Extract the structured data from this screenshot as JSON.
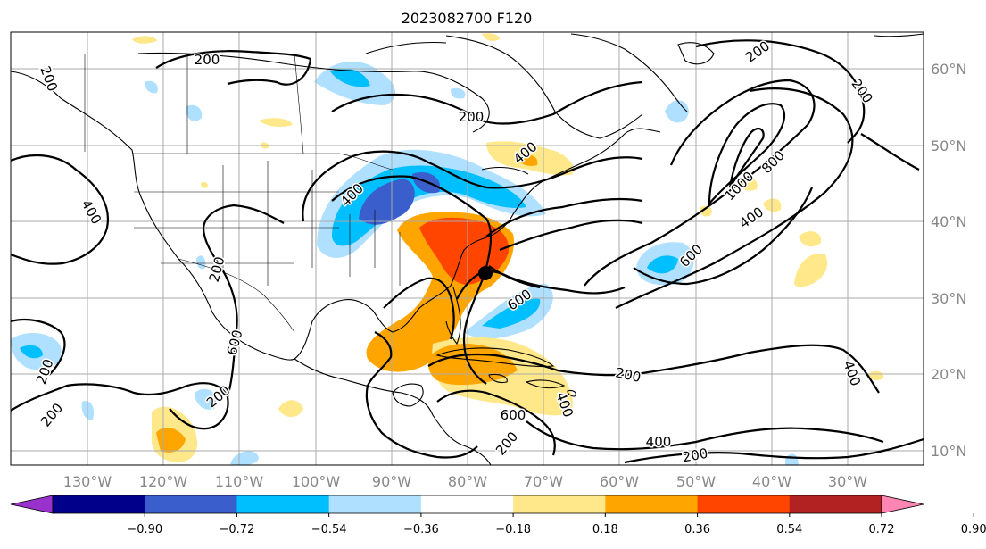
{
  "title": "2023082700 F120",
  "map": {
    "lat_labels": [
      "60°N",
      "50°N",
      "40°N",
      "30°N",
      "20°N",
      "10°N"
    ],
    "lon_labels": [
      "130°W",
      "120°W",
      "110°W",
      "100°W",
      "90°W",
      "80°W",
      "70°W",
      "60°W",
      "50°W",
      "40°W",
      "30°W"
    ],
    "contour_labels": [
      "200",
      "200",
      "200",
      "400",
      "400",
      "400",
      "400",
      "400",
      "400",
      "600",
      "600",
      "600",
      "800",
      "1000",
      "200",
      "200",
      "200",
      "200",
      "400",
      "200",
      "600",
      "200",
      "200",
      "200",
      "200"
    ],
    "marker": "storm-center"
  },
  "colorbar": {
    "ticks": [
      "−0.90",
      "−0.72",
      "−0.54",
      "−0.36",
      "−0.18",
      "0.18",
      "0.36",
      "0.54",
      "0.72",
      "0.90"
    ],
    "colors": [
      "#9932cc",
      "#00008b",
      "#3a5fcd",
      "#00bfff",
      "#b0e0ff",
      "#ffffff",
      "#ffe88a",
      "#ffa500",
      "#ff4500",
      "#b22222",
      "#ff85b3"
    ]
  }
}
